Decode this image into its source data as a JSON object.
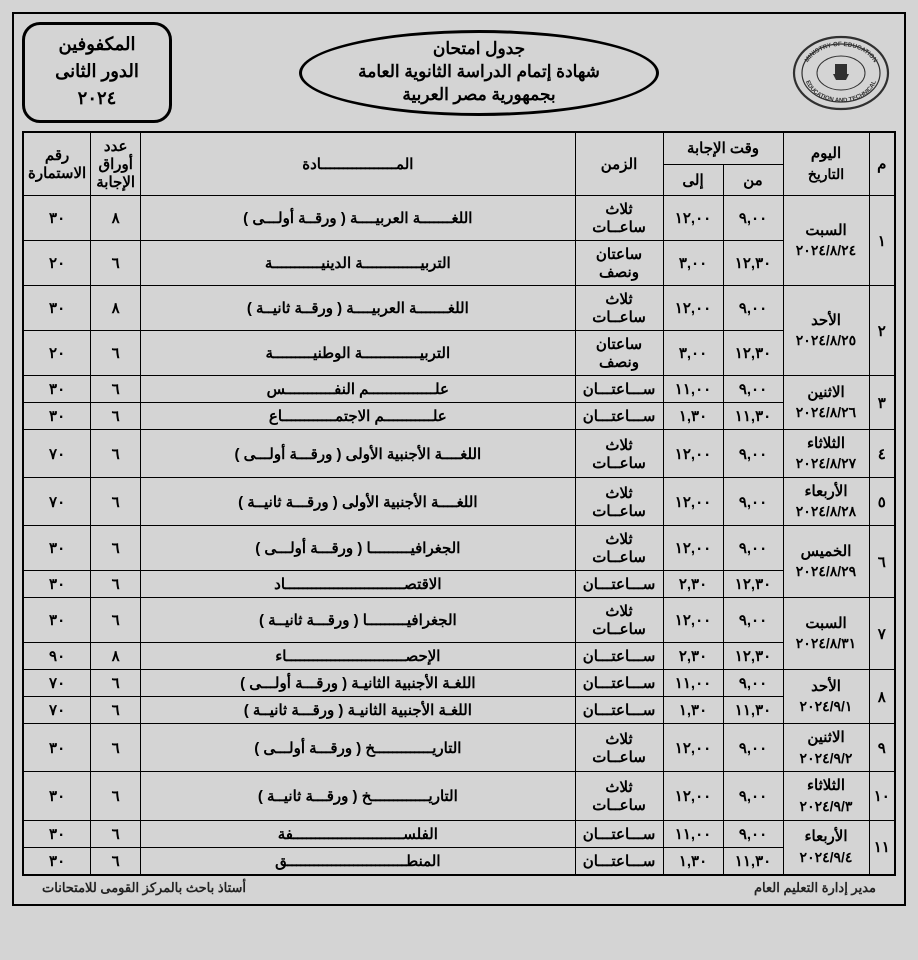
{
  "header": {
    "title_line1": "جدول امتحان",
    "title_line2": "شهادة إتمام الدراسة الثانوية العامة",
    "title_line3": "بجمهورية مصر العربية",
    "category_line1": "المكفوفين",
    "category_line2": "الدور الثانى",
    "category_line3": "٢٠٢٤"
  },
  "columns": {
    "idx": "م",
    "day_date": "اليوم\nالتاريخ",
    "answer_time": "وقت الإجابة",
    "from": "من",
    "to": "إلى",
    "duration": "الزمن",
    "subject": "المـــــــــــــــــادة",
    "papers": "عدد أوراق الإجابة",
    "form_no": "رقم الاستمارة"
  },
  "rows": [
    {
      "idx": "١",
      "day": "السبت",
      "date": "٢٠٢٤/٨/٢٤",
      "sessions": [
        {
          "from": "٩,٠٠",
          "to": "١٢,٠٠",
          "dur": "ثلاث ساعــات",
          "subject": "اللغـــــــة العربيــــة  ( ورقــة أولـــى )",
          "papers": "٨",
          "form": "٣٠"
        },
        {
          "from": "١٢,٣٠",
          "to": "٣,٠٠",
          "dur": "ساعتان ونصف",
          "subject": "التربيـــــــــــــة الدينيـــــــــــة",
          "papers": "٦",
          "form": "٢٠"
        }
      ]
    },
    {
      "idx": "٢",
      "day": "الأحد",
      "date": "٢٠٢٤/٨/٢٥",
      "sessions": [
        {
          "from": "٩,٠٠",
          "to": "١٢,٠٠",
          "dur": "ثلاث ساعــات",
          "subject": "اللغـــــــة العربيــــة  ( ورقــة ثانيــة )",
          "papers": "٨",
          "form": "٣٠"
        },
        {
          "from": "١٢,٣٠",
          "to": "٣,٠٠",
          "dur": "ساعتان ونصف",
          "subject": "التربيـــــــــــــة الوطنيـــــــــة",
          "papers": "٦",
          "form": "٢٠"
        }
      ]
    },
    {
      "idx": "٣",
      "day": "الاثنين",
      "date": "٢٠٢٤/٨/٢٦",
      "sessions": [
        {
          "from": "٩,٠٠",
          "to": "١١,٠٠",
          "dur": "ســـاعتـــان",
          "subject": "علـــــــــــــــم النفـــــــــــس",
          "papers": "٦",
          "form": "٣٠"
        },
        {
          "from": "١١,٣٠",
          "to": "١,٣٠",
          "dur": "ســـاعتـــان",
          "subject": "علـــــــــــم الاجتمــــــــــــاع",
          "papers": "٦",
          "form": "٣٠"
        }
      ]
    },
    {
      "idx": "٤",
      "day": "الثلاثاء",
      "date": "٢٠٢٤/٨/٢٧",
      "sessions": [
        {
          "from": "٩,٠٠",
          "to": "١٢,٠٠",
          "dur": "ثلاث ساعــات",
          "subject": "اللغــــة الأجنبية الأولى ( ورقـــة أولـــى )",
          "papers": "٦",
          "form": "٧٠"
        }
      ]
    },
    {
      "idx": "٥",
      "day": "الأربعاء",
      "date": "٢٠٢٤/٨/٢٨",
      "sessions": [
        {
          "from": "٩,٠٠",
          "to": "١٢,٠٠",
          "dur": "ثلاث ساعــات",
          "subject": "اللغــــة الأجنبية الأولى ( ورقـــة ثانيــة )",
          "papers": "٦",
          "form": "٧٠"
        }
      ]
    },
    {
      "idx": "٦",
      "day": "الخميس",
      "date": "٢٠٢٤/٨/٢٩",
      "sessions": [
        {
          "from": "٩,٠٠",
          "to": "١٢,٠٠",
          "dur": "ثلاث ساعــات",
          "subject": "الجغرافيـــــــــا ( ورقـــة أولـــى )",
          "papers": "٦",
          "form": "٣٠"
        },
        {
          "from": "١٢,٣٠",
          "to": "٢,٣٠",
          "dur": "ســـاعتـــان",
          "subject": "الاقتصـــــــــــــــــــــــــــاد",
          "papers": "٦",
          "form": "٣٠"
        }
      ]
    },
    {
      "idx": "٧",
      "day": "السبت",
      "date": "٢٠٢٤/٨/٣١",
      "sessions": [
        {
          "from": "٩,٠٠",
          "to": "١٢,٠٠",
          "dur": "ثلاث ساعــات",
          "subject": "الجغرافيـــــــــا ( ورقـــة ثانيــة )",
          "papers": "٦",
          "form": "٣٠"
        },
        {
          "from": "١٢,٣٠",
          "to": "٢,٣٠",
          "dur": "ســـاعتـــان",
          "subject": "الإحصـــــــــــــــــــــــــــاء",
          "papers": "٨",
          "form": "٩٠"
        }
      ]
    },
    {
      "idx": "٨",
      "day": "الأحد",
      "date": "٢٠٢٤/٩/١",
      "sessions": [
        {
          "from": "٩,٠٠",
          "to": "١١,٠٠",
          "dur": "ســـاعتـــان",
          "subject": "اللغـة الأجنبية الثانيـة ( ورقـــة أولـــى )",
          "papers": "٦",
          "form": "٧٠"
        },
        {
          "from": "١١,٣٠",
          "to": "١,٣٠",
          "dur": "ســـاعتـــان",
          "subject": "اللغـة الأجنبية الثانيـة ( ورقـــة ثانيــة )",
          "papers": "٦",
          "form": "٧٠"
        }
      ]
    },
    {
      "idx": "٩",
      "day": "الاثنين",
      "date": "٢٠٢٤/٩/٢",
      "sessions": [
        {
          "from": "٩,٠٠",
          "to": "١٢,٠٠",
          "dur": "ثلاث ساعــات",
          "subject": "التاريـــــــــــــخ ( ورقـــة أولـــى )",
          "papers": "٦",
          "form": "٣٠"
        }
      ]
    },
    {
      "idx": "١٠",
      "day": "الثلاثاء",
      "date": "٢٠٢٤/٩/٣",
      "sessions": [
        {
          "from": "٩,٠٠",
          "to": "١٢,٠٠",
          "dur": "ثلاث ساعــات",
          "subject": "التاريـــــــــــــخ ( ورقـــة ثانيــة )",
          "papers": "٦",
          "form": "٣٠"
        }
      ]
    },
    {
      "idx": "١١",
      "day": "الأربعاء",
      "date": "٢٠٢٤/٩/٤",
      "sessions": [
        {
          "from": "٩,٠٠",
          "to": "١١,٠٠",
          "dur": "ســـاعتـــان",
          "subject": "الفلســـــــــــــــــــــــــفة",
          "papers": "٦",
          "form": "٣٠"
        },
        {
          "from": "١١,٣٠",
          "to": "١,٣٠",
          "dur": "ســـاعتـــان",
          "subject": "المنطـــــــــــــــــــــــــــق",
          "papers": "٦",
          "form": "٣٠"
        }
      ]
    }
  ],
  "footer": {
    "right": "مدير إدارة التعليم العام",
    "left": "أستاذ باحث بالمركز القومى للامتحانات"
  }
}
